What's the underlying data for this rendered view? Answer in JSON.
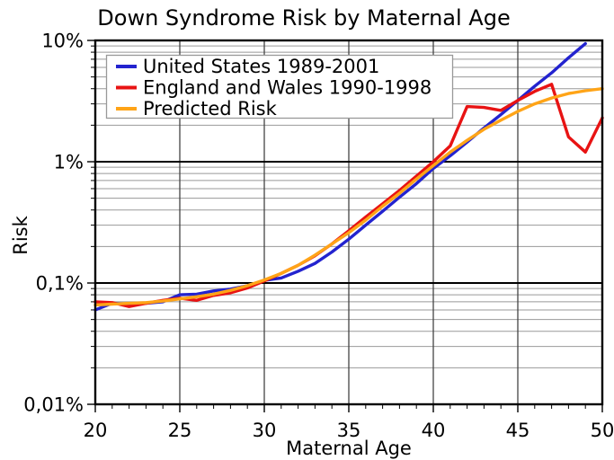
{
  "title": "Down Syndrome Risk by Maternal Age",
  "x_axis": {
    "label": "Maternal Age",
    "tick_labels": [
      "20",
      "25",
      "30",
      "35",
      "40",
      "45",
      "50"
    ],
    "tick_values": [
      20,
      25,
      30,
      35,
      40,
      45,
      50
    ],
    "minor_tick_step": 1,
    "range": [
      20,
      50
    ]
  },
  "y_axis": {
    "label": "Risk",
    "scale": "log",
    "tick_labels": [
      "10%",
      "1%",
      "0,1%",
      "0,01%"
    ],
    "tick_values_percent": [
      10,
      1,
      0.1,
      0.01
    ],
    "range_percent": [
      0.01,
      10
    ]
  },
  "legend": {
    "position": "top-left",
    "background": "#ffffff",
    "border_color": "#999999",
    "entries": [
      {
        "label": "United States 1989-2001",
        "color": "#2323cf"
      },
      {
        "label": "England and Wales 1990-1998",
        "color": "#e81313"
      },
      {
        "label": "Predicted Risk",
        "color": "#ffa417"
      }
    ]
  },
  "colors": {
    "background": "#ffffff",
    "spine": "#000000",
    "major_hgrid": "#000000",
    "vgrid": "#444444",
    "minor_hgrid": "#999999",
    "text": "#000000"
  },
  "chart_data": {
    "type": "line",
    "title": "Down Syndrome Risk by Maternal Age",
    "xlabel": "Maternal Age",
    "ylabel": "Risk",
    "x_range": [
      20,
      50
    ],
    "y_scale": "log",
    "y_range_percent": [
      0.01,
      10
    ],
    "x_ticks": [
      20,
      25,
      30,
      35,
      40,
      45,
      50
    ],
    "y_ticks": [
      {
        "value": 10,
        "label": "10%"
      },
      {
        "value": 1,
        "label": "1%"
      },
      {
        "value": 0.1,
        "label": "0,1%"
      },
      {
        "value": 0.01,
        "label": "0,01%"
      }
    ],
    "grid": {
      "vertical_at": [
        25,
        30,
        35,
        40,
        45
      ],
      "horizontal_major": [
        10,
        1,
        0.1,
        0.01
      ],
      "horizontal_minor": "log decades 2-9",
      "x_minor_ticks_every": 1
    },
    "legend_position": "top-left",
    "series": [
      {
        "name": "United States 1989-2001",
        "color": "#2323cf",
        "ages": [
          20,
          21,
          22,
          23,
          24,
          25,
          26,
          27,
          28,
          29,
          30,
          31,
          32,
          33,
          34,
          35,
          36,
          37,
          38,
          39,
          40,
          41,
          42,
          43,
          44,
          45,
          46,
          47,
          48,
          49
        ],
        "values_percent": [
          0.06,
          0.068,
          0.067,
          0.068,
          0.07,
          0.08,
          0.081,
          0.086,
          0.089,
          0.095,
          0.105,
          0.11,
          0.125,
          0.145,
          0.18,
          0.23,
          0.3,
          0.39,
          0.51,
          0.66,
          0.88,
          1.12,
          1.45,
          1.9,
          2.45,
          3.2,
          4.2,
          5.4,
          7.2,
          9.4
        ]
      },
      {
        "name": "England and Wales 1990-1998",
        "color": "#e81313",
        "ages": [
          20,
          21,
          22,
          23,
          24,
          25,
          26,
          27,
          28,
          29,
          30,
          31,
          32,
          33,
          34,
          35,
          36,
          37,
          38,
          39,
          40,
          41,
          42,
          43,
          44,
          45,
          46,
          47,
          48,
          49,
          50
        ],
        "values_percent": [
          0.07,
          0.069,
          0.064,
          0.068,
          0.072,
          0.075,
          0.072,
          0.079,
          0.083,
          0.091,
          0.104,
          0.12,
          0.14,
          0.168,
          0.21,
          0.27,
          0.35,
          0.45,
          0.58,
          0.76,
          1.0,
          1.35,
          2.85,
          2.8,
          2.65,
          3.2,
          3.8,
          4.35,
          1.6,
          1.2,
          2.3
        ]
      },
      {
        "name": "Predicted Risk",
        "color": "#ffa417",
        "ages": [
          20,
          21,
          22,
          23,
          24,
          25,
          26,
          27,
          28,
          29,
          30,
          31,
          32,
          33,
          34,
          35,
          36,
          37,
          38,
          39,
          40,
          41,
          42,
          43,
          44,
          45,
          46,
          47,
          48,
          49,
          50
        ],
        "values_percent": [
          0.066,
          0.067,
          0.068,
          0.069,
          0.071,
          0.074,
          0.077,
          0.081,
          0.087,
          0.095,
          0.106,
          0.12,
          0.14,
          0.17,
          0.21,
          0.26,
          0.33,
          0.43,
          0.55,
          0.72,
          0.93,
          1.2,
          1.5,
          1.85,
          2.2,
          2.6,
          3.0,
          3.35,
          3.65,
          3.85,
          4.0
        ]
      }
    ]
  }
}
